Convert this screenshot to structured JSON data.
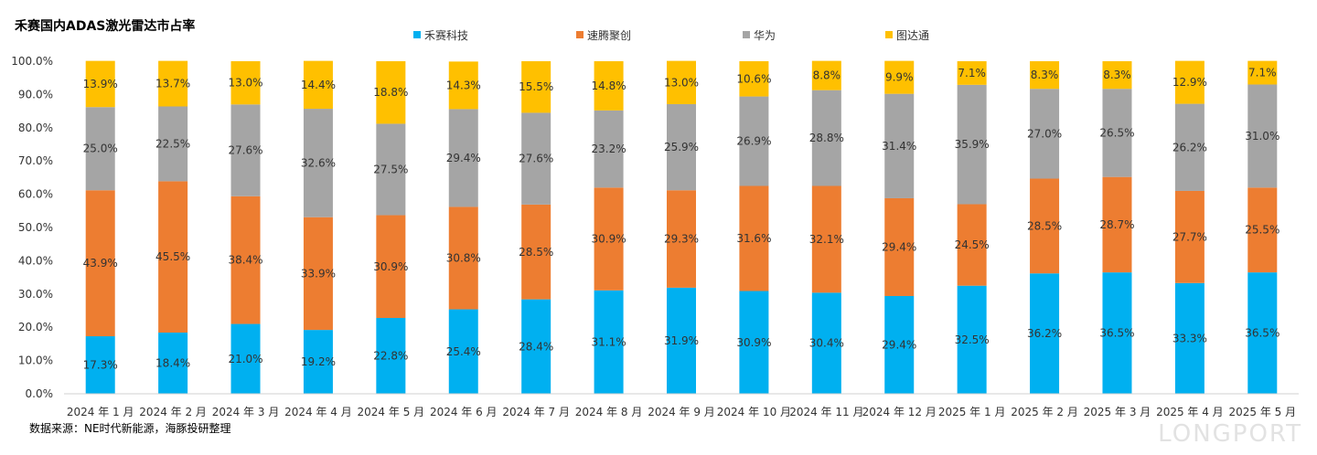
{
  "colors": {
    "禾赛科技": "#00B0F0",
    "速腾聚创": "#ED7D31",
    "华为": "#A5A5A5",
    "图达通": "#FFC000"
  },
  "watermark": "LONGPORT",
  "chart_data": {
    "type": "bar",
    "stacked": true,
    "title": "禾赛国内ADAS激光雷达市占率",
    "source": "数据来源：NE时代新能源，海豚投研整理",
    "categories": [
      "2024 年 1 月",
      "2024 年 2 月",
      "2024 年 3 月",
      "2024 年 4 月",
      "2024 年 5 月",
      "2024 年 6 月",
      "2024 年 7 月",
      "2024 年 8 月",
      "2024 年 9 月",
      "2024 年 10 月",
      "2024 年 11 月",
      "2024 年 12 月",
      "2025 年 1 月",
      "2025 年 2 月",
      "2025 年 3 月",
      "2025 年 4 月",
      "2025 年 5 月"
    ],
    "series": [
      {
        "name": "禾赛科技",
        "values": [
          17.3,
          18.4,
          21.0,
          19.2,
          22.8,
          25.4,
          28.4,
          31.1,
          31.9,
          30.9,
          30.4,
          29.4,
          32.5,
          36.2,
          36.5,
          33.3,
          36.5
        ]
      },
      {
        "name": "速腾聚创",
        "values": [
          43.9,
          45.5,
          38.4,
          33.9,
          30.9,
          30.8,
          28.5,
          30.9,
          29.3,
          31.6,
          32.1,
          29.4,
          24.5,
          28.5,
          28.7,
          27.7,
          25.5
        ]
      },
      {
        "name": "华为",
        "values": [
          25.0,
          22.5,
          27.6,
          32.6,
          27.5,
          29.4,
          27.6,
          23.2,
          25.9,
          26.9,
          28.8,
          31.4,
          35.9,
          27.0,
          26.5,
          26.2,
          31.0
        ]
      },
      {
        "name": "图达通",
        "values": [
          13.9,
          13.7,
          13.0,
          14.4,
          18.8,
          14.3,
          15.5,
          14.8,
          13.0,
          10.6,
          8.8,
          9.9,
          7.1,
          8.3,
          8.3,
          12.9,
          7.1
        ]
      }
    ],
    "ylim": [
      0,
      100
    ],
    "yticks": [
      0,
      10,
      20,
      30,
      40,
      50,
      60,
      70,
      80,
      90,
      100
    ],
    "ytick_labels": [
      "0.0%",
      "10.0%",
      "20.0%",
      "30.0%",
      "40.0%",
      "50.0%",
      "60.0%",
      "70.0%",
      "80.0%",
      "90.0%",
      "100.0%"
    ],
    "legend_position": "top",
    "grid": false
  }
}
